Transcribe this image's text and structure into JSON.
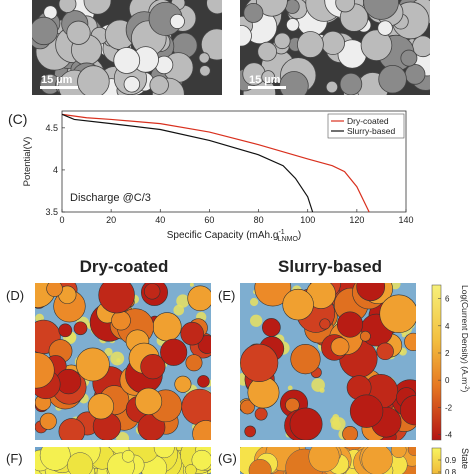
{
  "scale_bars": [
    "15 µm",
    "15 µm"
  ],
  "panel_labels": {
    "c": "(C)",
    "d": "(D)",
    "e": "(E)",
    "f": "(F)",
    "g": "(G)"
  },
  "headings": [
    "Dry-coated",
    "Slurry-based"
  ],
  "chart_data": {
    "type": "line",
    "ylabel": "Potential(V)",
    "xlabel": {
      "main": "Specific Capacity (mAh.g",
      "sup": "-1",
      "sub": "LNMO",
      "end": ")"
    },
    "annotation": "Discharge @C/3",
    "xlim": [
      0,
      140
    ],
    "xticks": [
      0,
      20,
      40,
      60,
      80,
      100,
      120,
      140
    ],
    "ylim": [
      3.5,
      4.7
    ],
    "yticks": [
      3.5,
      4,
      4.5
    ],
    "legend": "top-right",
    "series": [
      {
        "name": "Dry-coated",
        "color": "#d9301e",
        "x": [
          0,
          10,
          20,
          40,
          60,
          80,
          100,
          110,
          115,
          120,
          125
        ],
        "values": [
          4.66,
          4.62,
          4.6,
          4.55,
          4.45,
          4.3,
          4.13,
          4.05,
          3.98,
          3.8,
          3.5
        ]
      },
      {
        "name": "Slurry-based",
        "color": "#111111",
        "x": [
          0,
          5,
          20,
          40,
          60,
          80,
          90,
          95,
          100,
          102
        ],
        "values": [
          4.66,
          4.6,
          4.55,
          4.48,
          4.35,
          4.18,
          4.05,
          3.9,
          3.68,
          3.5
        ]
      }
    ]
  },
  "colorbar_current": {
    "label": "Log(Current Density) (A.m",
    "label_sup": "-2",
    "label_end": ")",
    "lim": [
      -4.4,
      7
    ],
    "ticks": [
      6,
      4,
      2,
      0,
      -2,
      -4
    ]
  },
  "colorbar_soc": {
    "label": "State",
    "lim": [
      0.8,
      1.0
    ],
    "ticks": [
      0.9,
      0.8
    ]
  }
}
